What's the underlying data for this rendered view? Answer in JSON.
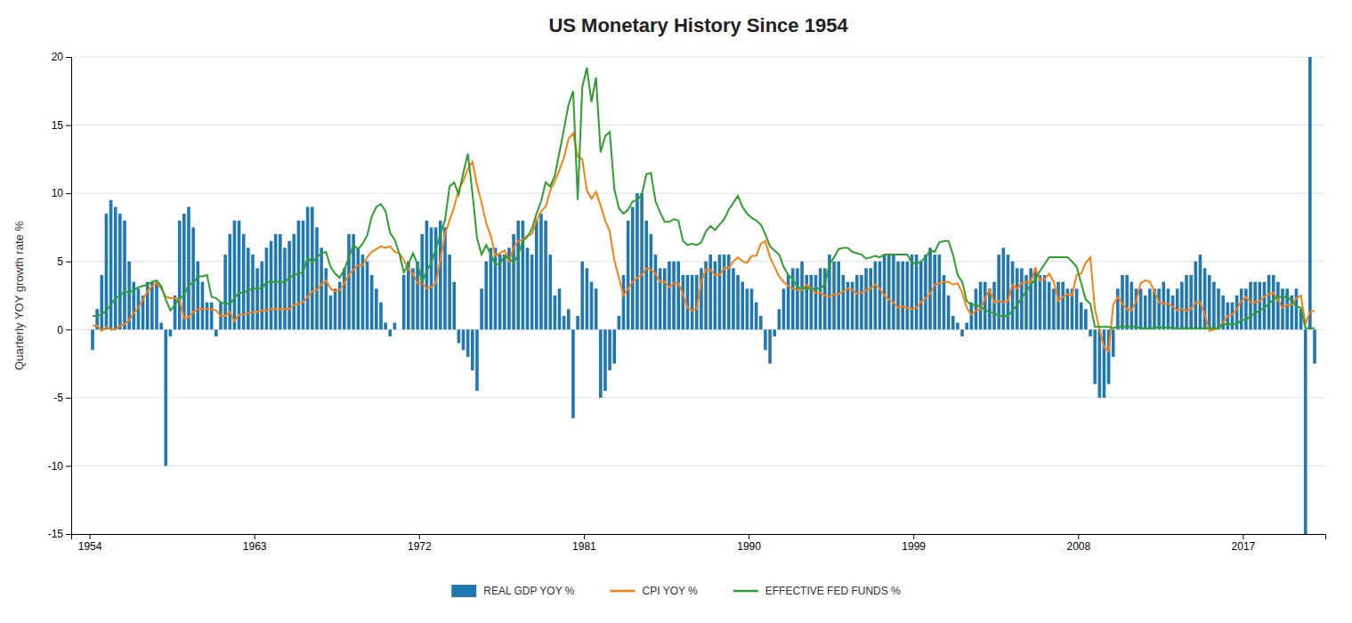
{
  "chart_data": {
    "type": "bar",
    "title": "US Monetary History Since 1954",
    "ylabel": "Quarterly YOY growth rate %",
    "xlim": [
      1953.0,
      2021.5
    ],
    "xticks": [
      1954,
      1963,
      1972,
      1981,
      1990,
      1999,
      2008,
      2017
    ],
    "ylim": [
      -15,
      20
    ],
    "yticks": [
      -15,
      -10,
      -5,
      0,
      5,
      10,
      15,
      20
    ],
    "grid": "y",
    "legend": "bottom",
    "x": [
      1954.1666666666667,
      1954.4166666666667,
      1954.6666666666667,
      1954.9166666666667,
      1955.1666666666667,
      1955.4166666666667,
      1955.6666666666667,
      1955.9166666666667,
      1956.1666666666667,
      1956.4166666666667,
      1956.6666666666667,
      1956.9166666666667,
      1957.1666666666667,
      1957.4166666666667,
      1957.6666666666667,
      1957.9166666666667,
      1958.1666666666667,
      1958.4166666666667,
      1958.6666666666667,
      1958.9166666666667,
      1959.1666666666667,
      1959.4166666666667,
      1959.6666666666667,
      1959.9166666666667,
      1960.1666666666667,
      1960.4166666666667,
      1960.6666666666667,
      1960.9166666666667,
      1961.1666666666667,
      1961.4166666666667,
      1961.6666666666667,
      1961.9166666666667,
      1962.1666666666667,
      1962.4166666666667,
      1962.6666666666667,
      1962.9166666666667,
      1963.1666666666667,
      1963.4166666666667,
      1963.6666666666667,
      1963.9166666666667,
      1964.1666666666667,
      1964.4166666666667,
      1964.6666666666667,
      1964.9166666666667,
      1965.1666666666667,
      1965.4166666666667,
      1965.6666666666667,
      1965.9166666666667,
      1966.1666666666667,
      1966.4166666666667,
      1966.6666666666667,
      1966.9166666666667,
      1967.1666666666667,
      1967.4166666666667,
      1967.6666666666667,
      1967.9166666666667,
      1968.1666666666667,
      1968.4166666666667,
      1968.6666666666667,
      1968.9166666666667,
      1969.1666666666667,
      1969.4166666666667,
      1969.6666666666667,
      1969.9166666666667,
      1970.1666666666667,
      1970.4166666666667,
      1970.6666666666667,
      1970.9166666666667,
      1971.1666666666667,
      1971.4166666666667,
      1971.6666666666667,
      1971.9166666666667,
      1972.1666666666667,
      1972.4166666666667,
      1972.6666666666667,
      1972.9166666666667,
      1973.1666666666667,
      1973.4166666666667,
      1973.6666666666667,
      1973.9166666666667,
      1974.1666666666667,
      1974.4166666666667,
      1974.6666666666667,
      1974.9166666666667,
      1975.1666666666667,
      1975.4166666666667,
      1975.6666666666667,
      1975.9166666666667,
      1976.1666666666667,
      1976.4166666666667,
      1976.6666666666667,
      1976.9166666666667,
      1977.1666666666667,
      1977.4166666666667,
      1977.6666666666667,
      1977.9166666666667,
      1978.1666666666667,
      1978.4166666666667,
      1978.6666666666667,
      1978.9166666666667,
      1979.1666666666667,
      1979.4166666666667,
      1979.6666666666667,
      1979.9166666666667,
      1980.1666666666667,
      1980.4166666666667,
      1980.6666666666667,
      1980.9166666666667,
      1981.1666666666667,
      1981.4166666666667,
      1981.6666666666667,
      1981.9166666666667,
      1982.1666666666667,
      1982.4166666666667,
      1982.6666666666667,
      1982.9166666666667,
      1983.1666666666667,
      1983.4166666666667,
      1983.6666666666667,
      1983.9166666666667,
      1984.1666666666667,
      1984.4166666666667,
      1984.6666666666667,
      1984.9166666666667,
      1985.1666666666667,
      1985.4166666666667,
      1985.6666666666667,
      1985.9166666666667,
      1986.1666666666667,
      1986.4166666666667,
      1986.6666666666667,
      1986.9166666666667,
      1987.1666666666667,
      1987.4166666666667,
      1987.6666666666667,
      1987.9166666666667,
      1988.1666666666667,
      1988.4166666666667,
      1988.6666666666667,
      1988.9166666666667,
      1989.1666666666667,
      1989.4166666666667,
      1989.6666666666667,
      1989.9166666666667,
      1990.1666666666667,
      1990.4166666666667,
      1990.6666666666667,
      1990.9166666666667,
      1991.1666666666667,
      1991.4166666666667,
      1991.6666666666667,
      1991.9166666666667,
      1992.1666666666667,
      1992.4166666666667,
      1992.6666666666667,
      1992.9166666666667,
      1993.1666666666667,
      1993.4166666666667,
      1993.6666666666667,
      1993.9166666666667,
      1994.1666666666667,
      1994.4166666666667,
      1994.6666666666667,
      1994.9166666666667,
      1995.1666666666667,
      1995.4166666666667,
      1995.6666666666667,
      1995.9166666666667,
      1996.1666666666667,
      1996.4166666666667,
      1996.6666666666667,
      1996.9166666666667,
      1997.1666666666667,
      1997.4166666666667,
      1997.6666666666667,
      1997.9166666666667,
      1998.1666666666667,
      1998.4166666666667,
      1998.6666666666667,
      1998.9166666666667,
      1999.1666666666667,
      1999.4166666666667,
      1999.6666666666667,
      1999.9166666666667,
      2000.1666666666667,
      2000.4166666666667,
      2000.6666666666667,
      2000.9166666666667,
      2001.1666666666667,
      2001.4166666666667,
      2001.6666666666667,
      2001.9166666666667,
      2002.1666666666667,
      2002.4166666666667,
      2002.6666666666667,
      2002.9166666666667,
      2003.1666666666667,
      2003.4166666666667,
      2003.6666666666667,
      2003.9166666666667,
      2004.1666666666667,
      2004.4166666666667,
      2004.6666666666667,
      2004.9166666666667,
      2005.1666666666667,
      2005.4166666666667,
      2005.6666666666667,
      2005.9166666666667,
      2006.1666666666667,
      2006.4166666666667,
      2006.6666666666667,
      2006.9166666666667,
      2007.1666666666667,
      2007.4166666666667,
      2007.6666666666667,
      2007.9166666666667,
      2008.1666666666667,
      2008.4166666666667,
      2008.6666666666667,
      2008.9166666666667,
      2009.1666666666667,
      2009.4166666666667,
      2009.6666666666667,
      2009.9166666666667,
      2010.1666666666667,
      2010.4166666666667,
      2010.6666666666667,
      2010.9166666666667,
      2011.1666666666667,
      2011.4166666666667,
      2011.6666666666667,
      2011.9166666666667,
      2012.1666666666667,
      2012.4166666666667,
      2012.6666666666667,
      2012.9166666666667,
      2013.1666666666667,
      2013.4166666666667,
      2013.6666666666667,
      2013.9166666666667,
      2014.1666666666667,
      2014.4166666666667,
      2014.6666666666667,
      2014.9166666666667,
      2015.1666666666667,
      2015.4166666666667,
      2015.6666666666667,
      2015.9166666666667,
      2016.1666666666667,
      2016.4166666666667,
      2016.6666666666667,
      2016.9166666666667,
      2017.1666666666667,
      2017.4166666666667,
      2017.6666666666667,
      2017.9166666666667,
      2018.1666666666667,
      2018.4166666666667,
      2018.6666666666667,
      2018.9166666666667,
      2019.1666666666667,
      2019.4166666666667,
      2019.6666666666667,
      2019.9166666666667,
      2020.1666666666667,
      2020.4166666666667,
      2020.6666666666667,
      2020.9166666666667
    ],
    "series": [
      {
        "name": "REAL GDP YOY %",
        "type": "bar",
        "values": [
          -1.5,
          1.5,
          4.0,
          8.5,
          9.5,
          9.0,
          8.5,
          8.0,
          5.0,
          3.5,
          3.0,
          2.5,
          3.5,
          3.5,
          3.5,
          0.5,
          -10.0,
          -0.5,
          2.5,
          8.0,
          8.5,
          9.0,
          7.5,
          5.0,
          3.5,
          2.0,
          2.0,
          -0.5,
          2.0,
          5.5,
          7.0,
          8.0,
          8.0,
          7.0,
          6.0,
          5.5,
          4.5,
          5.0,
          6.0,
          6.5,
          7.0,
          7.0,
          6.0,
          6.5,
          7.0,
          8.0,
          8.0,
          9.0,
          9.0,
          7.5,
          6.0,
          4.5,
          2.5,
          3.0,
          3.5,
          4.5,
          7.0,
          7.0,
          6.0,
          5.5,
          5.0,
          4.0,
          3.0,
          2.0,
          0.5,
          -0.5,
          0.5,
          0.0,
          4.0,
          5.0,
          4.5,
          5.0,
          7.0,
          8.0,
          7.5,
          7.5,
          8.0,
          7.5,
          5.5,
          3.5,
          -1.0,
          -1.5,
          -2.0,
          -3.0,
          -4.5,
          3.0,
          5.0,
          6.0,
          6.0,
          5.5,
          5.5,
          6.0,
          7.0,
          8.0,
          8.0,
          6.0,
          5.5,
          8.0,
          8.5,
          8.0,
          5.5,
          2.5,
          3.0,
          1.0,
          1.5,
          -6.5,
          1.0,
          5.0,
          4.5,
          3.5,
          3.0,
          -5.0,
          -4.5,
          -3.0,
          -2.5,
          1.0,
          4.0,
          8.0,
          9.0,
          10.0,
          10.0,
          8.0,
          7.0,
          5.5,
          4.5,
          4.5,
          5.0,
          5.0,
          5.0,
          4.0,
          4.0,
          4.0,
          4.0,
          4.5,
          5.0,
          5.5,
          5.0,
          5.5,
          5.5,
          5.5,
          4.5,
          4.0,
          3.5,
          3.0,
          3.0,
          2.0,
          1.0,
          -1.5,
          -2.5,
          -0.5,
          1.5,
          3.0,
          4.0,
          4.5,
          4.5,
          5.0,
          4.0,
          4.0,
          4.0,
          4.5,
          4.5,
          5.5,
          5.0,
          5.0,
          4.0,
          3.5,
          3.5,
          4.0,
          4.0,
          4.5,
          4.5,
          5.0,
          5.0,
          5.5,
          5.5,
          5.5,
          5.0,
          5.0,
          5.0,
          5.5,
          5.5,
          5.0,
          5.5,
          6.0,
          5.5,
          5.5,
          4.0,
          2.5,
          1.0,
          0.5,
          -0.5,
          0.5,
          2.0,
          3.0,
          3.5,
          3.5,
          3.0,
          3.5,
          5.5,
          6.0,
          5.5,
          5.0,
          4.5,
          4.5,
          4.0,
          4.5,
          4.5,
          4.0,
          4.0,
          3.5,
          3.0,
          3.5,
          3.5,
          3.0,
          3.0,
          3.0,
          2.0,
          1.5,
          -0.5,
          -4.0,
          -5.0,
          -5.0,
          -4.0,
          -2.0,
          3.0,
          4.0,
          4.0,
          3.5,
          3.0,
          3.0,
          2.5,
          3.0,
          3.0,
          3.0,
          3.5,
          3.0,
          2.5,
          3.0,
          3.5,
          4.0,
          4.0,
          5.0,
          5.5,
          4.5,
          4.0,
          3.5,
          3.0,
          2.5,
          2.0,
          2.0,
          2.5,
          3.0,
          3.0,
          3.5,
          3.5,
          3.5,
          3.5,
          4.0,
          4.0,
          3.5,
          3.0,
          3.0,
          2.5,
          3.0,
          1.5,
          -15.0,
          20.0,
          -2.5
        ]
      },
      {
        "name": "CPI YOY %",
        "type": "line",
        "values": [
          0.3,
          0.3,
          -0.1,
          0.2,
          0.0,
          0.0,
          0.3,
          0.4,
          0.7,
          1.2,
          1.6,
          2.2,
          2.8,
          3.2,
          3.4,
          3.0,
          2.4,
          2.3,
          2.3,
          2.2,
          0.8,
          0.9,
          1.3,
          1.5,
          1.5,
          1.5,
          1.5,
          1.4,
          1.0,
          1.0,
          1.3,
          0.6,
          1.1,
          1.1,
          1.2,
          1.3,
          1.3,
          1.4,
          1.4,
          1.5,
          1.5,
          1.5,
          1.5,
          1.5,
          1.8,
          1.9,
          2.0,
          2.4,
          2.8,
          2.9,
          3.3,
          3.6,
          3.0,
          2.8,
          2.9,
          3.4,
          4.0,
          4.4,
          4.7,
          4.7,
          5.3,
          5.7,
          5.9,
          6.1,
          6.0,
          6.1,
          5.7,
          5.6,
          5.1,
          4.4,
          4.1,
          3.4,
          3.4,
          3.0,
          3.1,
          3.4,
          5.1,
          7.0,
          8.0,
          9.0,
          10.3,
          10.9,
          11.8,
          12.3,
          10.6,
          9.3,
          7.8,
          6.9,
          5.4,
          5.6,
          5.8,
          5.0,
          6.0,
          6.5,
          6.6,
          6.9,
          7.0,
          8.0,
          8.7,
          9.0,
          10.2,
          10.9,
          11.7,
          12.6,
          14.0,
          14.4,
          12.7,
          12.5,
          10.2,
          9.6,
          10.1,
          9.1,
          8.0,
          7.2,
          5.1,
          3.8,
          2.5,
          3.0,
          3.5,
          3.8,
          4.0,
          4.5,
          4.4,
          4.1,
          3.5,
          3.5,
          3.1,
          3.4,
          3.4,
          2.6,
          1.6,
          1.4,
          1.5,
          3.5,
          4.4,
          4.4,
          4.0,
          4.0,
          4.5,
          4.5,
          5.0,
          5.3,
          5.0,
          4.9,
          5.4,
          5.4,
          6.3,
          6.5,
          5.3,
          4.6,
          3.9,
          3.5,
          3.2,
          3.0,
          2.9,
          2.9,
          3.3,
          3.0,
          2.7,
          2.7,
          2.5,
          2.4,
          2.6,
          2.6,
          2.8,
          3.0,
          2.9,
          2.6,
          2.7,
          2.9,
          3.0,
          3.3,
          3.0,
          2.5,
          2.2,
          2.0,
          1.6,
          1.7,
          1.6,
          1.5,
          1.6,
          2.0,
          2.3,
          2.6,
          3.3,
          3.4,
          3.5,
          3.5,
          3.3,
          3.4,
          2.7,
          1.6,
          1.1,
          1.4,
          1.5,
          2.3,
          2.9,
          2.0,
          2.1,
          2.0,
          2.1,
          3.3,
          3.0,
          3.4,
          3.5,
          3.5,
          4.5,
          3.6,
          3.7,
          4.1,
          3.5,
          2.1,
          2.4,
          2.6,
          2.5,
          4.0,
          4.1,
          4.9,
          5.3,
          1.5,
          0.0,
          -1.3,
          -1.6,
          1.8,
          2.4,
          1.9,
          1.5,
          1.4,
          2.1,
          3.4,
          3.6,
          3.5,
          2.8,
          2.0,
          1.9,
          1.9,
          1.7,
          1.4,
          1.5,
          1.4,
          1.5,
          2.0,
          2.0,
          1.1,
          -0.1,
          0.0,
          0.1,
          0.5,
          1.0,
          1.1,
          1.5,
          2.1,
          2.4,
          2.0,
          2.0,
          2.1,
          2.4,
          2.6,
          2.7,
          2.2,
          1.6,
          1.8,
          1.8,
          2.3,
          2.5,
          0.4,
          1.3,
          1.4
        ]
      },
      {
        "name": "EFFECTIVE FED FUNDS %",
        "type": "line",
        "values": [
          1.0,
          1.0,
          1.1,
          1.4,
          1.8,
          2.3,
          2.5,
          2.8,
          2.7,
          2.9,
          3.1,
          3.2,
          3.3,
          3.5,
          3.6,
          3.2,
          2.2,
          1.4,
          1.8,
          2.3,
          2.5,
          3.3,
          3.4,
          3.9,
          3.9,
          4.0,
          2.4,
          2.3,
          2.0,
          1.9,
          1.9,
          2.3,
          2.7,
          2.7,
          2.9,
          3.0,
          3.0,
          3.0,
          3.5,
          3.5,
          3.5,
          3.5,
          3.5,
          3.8,
          4.0,
          4.1,
          4.2,
          5.3,
          4.9,
          5.3,
          5.6,
          5.7,
          4.6,
          4.1,
          3.8,
          4.4,
          5.3,
          6.2,
          5.9,
          6.3,
          6.9,
          8.3,
          9.0,
          9.2,
          8.7,
          7.1,
          6.6,
          5.6,
          4.2,
          4.8,
          5.6,
          4.8,
          3.5,
          4.3,
          4.9,
          5.9,
          7.0,
          8.0,
          10.5,
          10.8,
          9.9,
          11.5,
          12.9,
          10.0,
          6.7,
          5.5,
          6.2,
          5.5,
          4.8,
          4.8,
          5.4,
          5.2,
          4.9,
          5.5,
          6.5,
          6.8,
          7.4,
          8.5,
          9.4,
          10.8,
          10.5,
          11.3,
          13.0,
          14.7,
          16.5,
          17.5,
          9.5,
          17.8,
          19.2,
          16.7,
          18.5,
          13.0,
          14.2,
          14.5,
          10.3,
          8.9,
          8.5,
          8.8,
          9.4,
          9.5,
          9.9,
          11.4,
          11.5,
          9.4,
          8.6,
          7.9,
          7.9,
          8.1,
          8.0,
          6.5,
          6.2,
          6.3,
          6.2,
          6.4,
          7.2,
          7.6,
          7.3,
          7.7,
          8.1,
          8.8,
          9.3,
          9.8,
          9.0,
          8.5,
          8.2,
          8.0,
          7.7,
          7.0,
          6.1,
          5.8,
          5.5,
          4.6,
          4.0,
          3.7,
          3.1,
          3.0,
          3.0,
          3.0,
          3.0,
          3.0,
          3.3,
          4.8,
          5.3,
          5.9,
          6.0,
          6.0,
          5.7,
          5.6,
          5.5,
          5.2,
          5.3,
          5.4,
          5.3,
          5.5,
          5.5,
          5.5,
          5.5,
          5.5,
          5.5,
          4.9,
          4.8,
          5.0,
          5.3,
          5.8,
          5.7,
          6.4,
          6.5,
          6.5,
          5.5,
          4.0,
          3.5,
          2.1,
          1.8,
          1.8,
          1.7,
          1.4,
          1.3,
          1.2,
          1.0,
          1.0,
          1.0,
          1.4,
          1.8,
          2.3,
          2.8,
          3.3,
          3.7,
          4.3,
          4.8,
          5.3,
          5.3,
          5.3,
          5.3,
          5.3,
          5.0,
          4.6,
          3.4,
          2.2,
          1.9,
          0.2,
          0.2,
          0.2,
          0.2,
          0.1,
          0.2,
          0.2,
          0.2,
          0.2,
          0.2,
          0.1,
          0.1,
          0.1,
          0.1,
          0.2,
          0.1,
          0.2,
          0.1,
          0.1,
          0.1,
          0.1,
          0.1,
          0.1,
          0.1,
          0.1,
          0.1,
          0.1,
          0.1,
          0.4,
          0.4,
          0.4,
          0.4,
          0.7,
          0.7,
          1.0,
          1.2,
          1.4,
          1.6,
          1.9,
          2.2,
          2.4,
          2.4,
          2.4,
          2.1,
          1.7,
          1.6,
          0.1,
          0.1,
          0.1
        ]
      }
    ]
  }
}
